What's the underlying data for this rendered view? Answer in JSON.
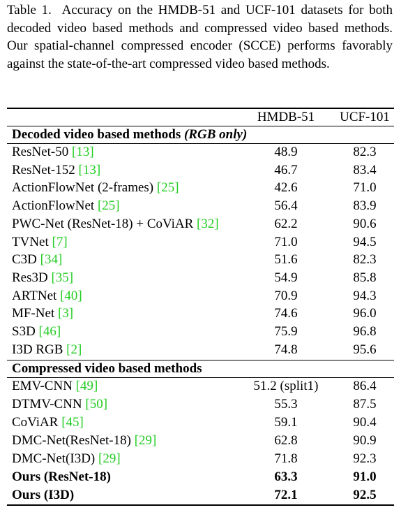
{
  "caption": {
    "label": "Table 1.",
    "text": "Accuracy on the HMDB-51 and UCF-101 datasets for both decoded video based methods and compressed video based methods. Our spatial-channel compressed encoder (SCCE) performs favorably against the state-of-the-art compressed video based methods."
  },
  "table": {
    "columns": [
      "HMDB-51",
      "UCF-101"
    ],
    "sections": [
      {
        "title": "Decoded video based methods",
        "title_italic": "(RGB only)",
        "rows": [
          {
            "method": "ResNet-50",
            "cite": "[13]",
            "values": [
              "48.9",
              "82.3"
            ]
          },
          {
            "method": "ResNet-152",
            "cite": "[13]",
            "values": [
              "46.7",
              "83.4"
            ]
          },
          {
            "method": "ActionFlowNet (2-frames)",
            "cite": "[25]",
            "values": [
              "42.6",
              "71.0"
            ]
          },
          {
            "method": "ActionFlowNet",
            "cite": "[25]",
            "values": [
              "56.4",
              "83.9"
            ]
          },
          {
            "method": "PWC-Net (ResNet-18) + CoViAR",
            "cite": "[32]",
            "values": [
              "62.2",
              "90.6"
            ]
          },
          {
            "method": "TVNet",
            "cite": "[7]",
            "values": [
              "71.0",
              "94.5"
            ]
          },
          {
            "method": "C3D",
            "cite": "[34]",
            "values": [
              "51.6",
              "82.3"
            ]
          },
          {
            "method": "Res3D",
            "cite": "[35]",
            "values": [
              "54.9",
              "85.8"
            ]
          },
          {
            "method": "ARTNet",
            "cite": "[40]",
            "values": [
              "70.9",
              "94.3"
            ]
          },
          {
            "method": "MF-Net",
            "cite": "[3]",
            "values": [
              "74.6",
              "96.0"
            ]
          },
          {
            "method": "S3D",
            "cite": "[46]",
            "values": [
              "75.9",
              "96.8"
            ]
          },
          {
            "method": "I3D RGB",
            "cite": "[2]",
            "values": [
              "74.8",
              "95.6"
            ]
          }
        ]
      },
      {
        "title": "Compressed video based methods",
        "rows": [
          {
            "method": "EMV-CNN",
            "cite": "[49]",
            "values": [
              "51.2 (split1)",
              "86.4"
            ]
          },
          {
            "method": "DTMV-CNN",
            "cite": "[50]",
            "values": [
              "55.3",
              "87.5"
            ]
          },
          {
            "method": "CoViAR",
            "cite": "[45]",
            "values": [
              "59.1",
              "90.4"
            ]
          },
          {
            "method": "DMC-Net(ResNet-18)",
            "cite": "[29]",
            "values": [
              "62.8",
              "90.9"
            ]
          },
          {
            "method": "DMC-Net(I3D)",
            "cite": "[29]",
            "values": [
              "71.8",
              "92.3"
            ]
          },
          {
            "method": "Ours (ResNet-18)",
            "values": [
              "63.3",
              "91.0"
            ],
            "bold": true
          },
          {
            "method": "Ours (I3D)",
            "values": [
              "72.1",
              "92.5"
            ],
            "bold": true
          }
        ]
      }
    ]
  }
}
